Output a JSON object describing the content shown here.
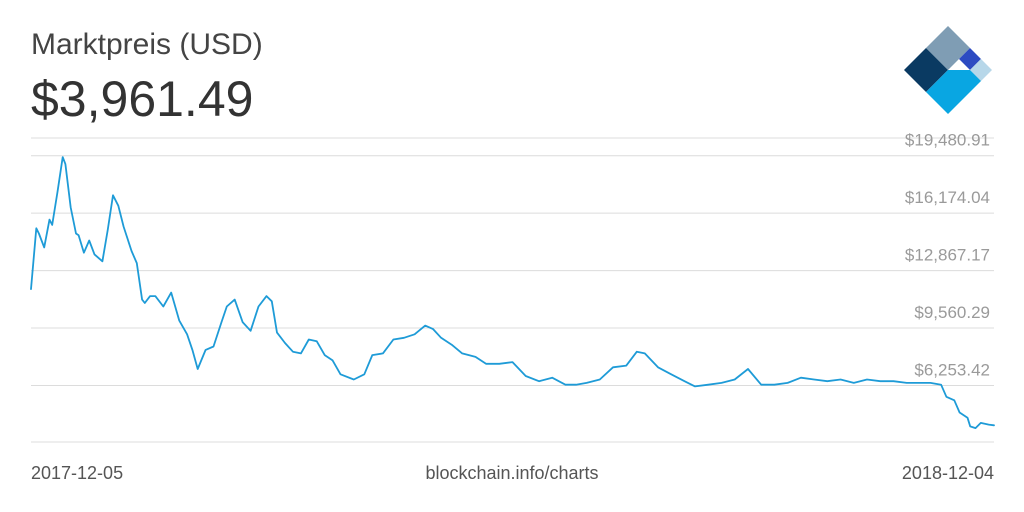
{
  "header": {
    "title": "Marktpreis (USD)",
    "price": "$3,961.49"
  },
  "footer": {
    "date_start": "2017-12-05",
    "source": "blockchain.info/charts",
    "date_end": "2018-12-04"
  },
  "colors": {
    "line": "#1e9bd7",
    "grid": "#dcdcdc",
    "tick_text": "#9a9a9a",
    "logo": [
      "#7f9db4",
      "#0a3a62",
      "#2d4bc2",
      "#b7d7e9",
      "#09a6e2"
    ]
  },
  "icons": {
    "brand_logo": "blockchain-diamond-logo"
  },
  "chart_data": {
    "type": "line",
    "title": "Marktpreis (USD)",
    "x_range": [
      "2017-12-05",
      "2018-12-04"
    ],
    "ylim": [
      3000,
      20500
    ],
    "y_ticks": [
      6253.42,
      9560.29,
      12867.17,
      16174.04,
      19480.91
    ],
    "y_tick_labels": [
      "$6,253.42",
      "$9,560.29",
      "$12,867.17",
      "$16,174.04",
      "$19,480.91"
    ],
    "grid": true,
    "series": [
      {
        "x": [
          "2017-12-05",
          "2017-12-07",
          "2017-12-08",
          "2017-12-10",
          "2017-12-12",
          "2017-12-13",
          "2017-12-15",
          "2017-12-17",
          "2017-12-18",
          "2017-12-20",
          "2017-12-22",
          "2017-12-23",
          "2017-12-25",
          "2017-12-27",
          "2017-12-29",
          "2018-01-01",
          "2018-01-03",
          "2018-01-05",
          "2018-01-07",
          "2018-01-09",
          "2018-01-12",
          "2018-01-14",
          "2018-01-16",
          "2018-01-17",
          "2018-01-19",
          "2018-01-21",
          "2018-01-24",
          "2018-01-27",
          "2018-01-30",
          "2018-02-02",
          "2018-02-04",
          "2018-02-06",
          "2018-02-09",
          "2018-02-12",
          "2018-02-15",
          "2018-02-17",
          "2018-02-20",
          "2018-02-23",
          "2018-02-26",
          "2018-03-01",
          "2018-03-04",
          "2018-03-06",
          "2018-03-08",
          "2018-03-11",
          "2018-03-14",
          "2018-03-17",
          "2018-03-20",
          "2018-03-23",
          "2018-03-26",
          "2018-03-29",
          "2018-04-01",
          "2018-04-06",
          "2018-04-10",
          "2018-04-13",
          "2018-04-17",
          "2018-04-21",
          "2018-04-25",
          "2018-04-29",
          "2018-05-03",
          "2018-05-06",
          "2018-05-09",
          "2018-05-13",
          "2018-05-17",
          "2018-05-22",
          "2018-05-26",
          "2018-05-31",
          "2018-06-05",
          "2018-06-10",
          "2018-06-15",
          "2018-06-20",
          "2018-06-25",
          "2018-06-29",
          "2018-07-03",
          "2018-07-08",
          "2018-07-13",
          "2018-07-18",
          "2018-07-22",
          "2018-07-25",
          "2018-07-30",
          "2018-08-04",
          "2018-08-09",
          "2018-08-13",
          "2018-08-18",
          "2018-08-23",
          "2018-08-28",
          "2018-09-02",
          "2018-09-07",
          "2018-09-12",
          "2018-09-17",
          "2018-09-22",
          "2018-09-27",
          "2018-10-02",
          "2018-10-07",
          "2018-10-12",
          "2018-10-17",
          "2018-10-22",
          "2018-10-27",
          "2018-11-01",
          "2018-11-06",
          "2018-11-10",
          "2018-11-14",
          "2018-11-16",
          "2018-11-19",
          "2018-11-21",
          "2018-11-24",
          "2018-11-25",
          "2018-11-27",
          "2018-11-29",
          "2018-12-02",
          "2018-12-04"
        ],
        "y": [
          11800,
          15300,
          15000,
          14200,
          15800,
          15500,
          17400,
          19400,
          19000,
          16500,
          15000,
          14900,
          13900,
          14600,
          13800,
          13400,
          15200,
          17200,
          16600,
          15400,
          14000,
          13300,
          11200,
          11000,
          11400,
          11400,
          10800,
          11600,
          10000,
          9200,
          8300,
          7200,
          8300,
          8500,
          9900,
          10800,
          11200,
          9900,
          9400,
          10800,
          11400,
          11100,
          9300,
          8700,
          8200,
          8100,
          8900,
          8800,
          8000,
          7700,
          6900,
          6600,
          6900,
          8000,
          8100,
          8900,
          9000,
          9200,
          9700,
          9500,
          9000,
          8600,
          8100,
          7900,
          7500,
          7500,
          7600,
          6800,
          6500,
          6700,
          6300,
          6300,
          6400,
          6600,
          7300,
          7400,
          8200,
          8100,
          7300,
          6900,
          6500,
          6200,
          6300,
          6400,
          6600,
          7200,
          6300,
          6300,
          6400,
          6700,
          6600,
          6500,
          6600,
          6400,
          6600,
          6500,
          6500,
          6400,
          6400,
          6400,
          6300,
          5600,
          5400,
          4700,
          4400,
          3900,
          3800,
          4100,
          4000,
          3961
        ]
      }
    ]
  }
}
